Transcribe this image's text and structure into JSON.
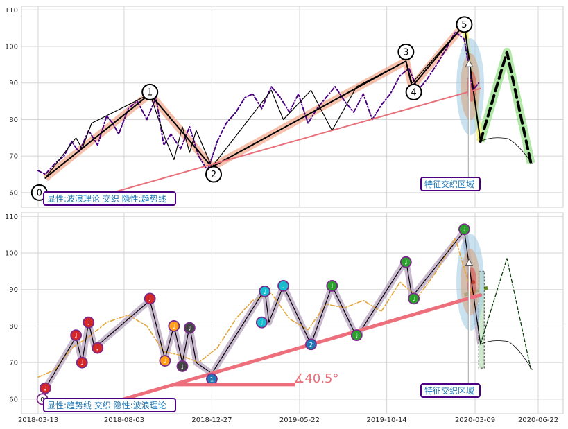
{
  "chart_data": [
    {
      "type": "line",
      "panel": "top",
      "ylim": [
        56,
        111
      ],
      "yticks": [
        60,
        70,
        80,
        90,
        100,
        110
      ],
      "grid": true,
      "annotation_box": "显性:波浪理论 交织 隐性:趋势线",
      "region_label": "特征交织区域",
      "series": [
        {
          "style": "dash-dot-purple",
          "x": [
            "2018-03-13",
            "2018-03-25",
            "2018-04-10",
            "2018-04-25",
            "2018-05-08",
            "2018-05-20",
            "2018-06-05",
            "2018-06-20",
            "2018-07-05",
            "2018-07-15",
            "2018-07-25",
            "2018-08-10",
            "2018-08-25",
            "2018-09-10",
            "2018-09-25",
            "2018-10-08",
            "2018-10-20",
            "2018-11-05",
            "2018-11-20",
            "2018-12-05",
            "2018-12-20",
            "2019-01-05",
            "2019-01-20",
            "2019-02-05",
            "2019-02-20",
            "2019-03-05",
            "2019-03-20",
            "2019-04-05",
            "2019-04-20",
            "2019-05-05",
            "2019-05-20",
            "2019-06-05",
            "2019-06-20",
            "2019-07-05",
            "2019-07-20",
            "2019-08-05",
            "2019-08-20",
            "2019-09-05",
            "2019-09-20",
            "2019-10-05",
            "2019-10-20",
            "2019-11-05",
            "2019-11-20",
            "2019-12-05",
            "2019-12-20",
            "2020-01-05",
            "2020-01-20",
            "2020-02-05",
            "2020-02-20",
            "2020-03-05",
            "2020-03-15"
          ],
          "y": [
            66,
            65,
            68,
            70,
            74,
            71,
            77,
            73,
            81,
            79,
            76,
            83,
            85,
            80,
            86,
            73,
            76,
            72,
            78,
            70,
            66,
            74,
            79,
            82,
            86,
            87,
            83,
            89,
            86,
            82,
            87,
            79,
            83,
            86,
            89,
            85,
            82,
            87,
            80,
            84,
            87,
            92,
            94,
            88,
            91,
            95,
            99,
            104,
            102,
            88,
            90
          ]
        },
        {
          "style": "wave-thin",
          "x": [
            "2018-03-25",
            "2018-05-15",
            "2018-05-25",
            "2018-06-10",
            "2018-09-15",
            "2018-10-10",
            "2018-10-25",
            "2018-11-08",
            "2018-11-20",
            "2018-12-01",
            "2018-12-27",
            "2019-04-05",
            "2019-04-25",
            "2019-06-10",
            "2019-07-15",
            "2019-08-25",
            "2019-11-15",
            "2019-11-25",
            "2020-02-20",
            "2020-03-18"
          ],
          "y": [
            64,
            75,
            72,
            79,
            87,
            75,
            69,
            78,
            71,
            77,
            67,
            88,
            80,
            88,
            77,
            89,
            96,
            90,
            106,
            74
          ]
        },
        {
          "style": "wave-main",
          "x": [
            "2018-03-25",
            "2018-09-15",
            "2018-12-27",
            "2019-11-15",
            "2019-11-25",
            "2020-02-20",
            "2020-03-18"
          ],
          "y": [
            64,
            87,
            67,
            96,
            89,
            106,
            74
          ]
        },
        {
          "style": "trend-red",
          "x": [
            "2018-06-01",
            "2020-03-18"
          ],
          "y": [
            58,
            88.5
          ]
        },
        {
          "style": "forecast-dashed",
          "x": [
            "2020-03-18",
            "2020-05-01",
            "2020-06-10"
          ],
          "y": [
            74,
            98.5,
            68
          ]
        }
      ],
      "wave_points": [
        {
          "label": "0",
          "x": "2018-03-15",
          "y": 60
        },
        {
          "label": "1",
          "x": "2018-09-15",
          "y": 87.5
        },
        {
          "label": "2",
          "x": "2018-12-30",
          "y": 65
        },
        {
          "label": "3",
          "x": "2019-11-15",
          "y": 98.5
        },
        {
          "label": "4",
          "x": "2019-11-28",
          "y": 87.5
        },
        {
          "label": "5",
          "x": "2020-02-20",
          "y": 106
        }
      ]
    },
    {
      "type": "line",
      "panel": "bottom",
      "ylim": [
        56,
        111
      ],
      "yticks": [
        60,
        70,
        80,
        90,
        100,
        110
      ],
      "xticks": [
        "2018-03-13",
        "2018-08-03",
        "2018-12-27",
        "2019-05-22",
        "2019-10-14",
        "2020-03-09",
        "2020-06-22"
      ],
      "grid": true,
      "annotation_box": "显性:趋势线 交织 隐性:波浪理论",
      "region_label": "特征交织区域",
      "angle_label": "∡40.5°",
      "series": [
        {
          "style": "dash-dot-orange",
          "x": [
            "2018-03-13",
            "2018-04-10",
            "2018-05-08",
            "2018-06-05",
            "2018-07-05",
            "2018-08-10",
            "2018-09-10",
            "2018-10-08",
            "2018-11-05",
            "2018-12-05",
            "2019-01-05",
            "2019-02-05",
            "2019-03-05",
            "2019-04-05",
            "2019-05-05",
            "2019-06-05",
            "2019-07-05",
            "2019-08-05",
            "2019-09-05",
            "2019-10-05",
            "2019-11-05",
            "2019-12-05",
            "2020-01-05",
            "2020-02-05",
            "2020-03-05"
          ],
          "y": [
            66,
            68,
            74,
            77,
            81,
            83,
            80,
            73,
            72,
            70,
            74,
            82,
            87,
            89,
            82,
            79,
            86,
            85,
            87,
            84,
            92,
            88,
            95,
            104,
            88
          ]
        },
        {
          "style": "wave-thin",
          "x": [
            "2018-03-25",
            "2018-05-15",
            "2018-05-25",
            "2018-06-05",
            "2018-06-15",
            "2018-09-15",
            "2018-10-10",
            "2018-10-25",
            "2018-11-08",
            "2018-11-20",
            "2018-12-01",
            "2018-12-27",
            "2019-03-25",
            "2019-04-01",
            "2019-04-25",
            "2019-06-10",
            "2019-07-15",
            "2019-08-25",
            "2019-11-15",
            "2019-11-25",
            "2020-02-20",
            "2020-03-18"
          ],
          "y": [
            63,
            77,
            70,
            81,
            74,
            87,
            71,
            80,
            70,
            80,
            70,
            67,
            90,
            81,
            91,
            75,
            91,
            77,
            98,
            88,
            106,
            75
          ]
        },
        {
          "style": "trend-red-thick",
          "x": [
            "2018-06-01",
            "2020-03-18"
          ],
          "y": [
            57,
            88.5
          ]
        },
        {
          "style": "forecast-dashed-thin",
          "x": [
            "2020-03-18",
            "2020-05-01",
            "2020-06-10"
          ],
          "y": [
            75,
            98.5,
            68
          ]
        }
      ],
      "markers": [
        {
          "label": "0",
          "x": "2018-03-20",
          "y": 60,
          "color": "#ffffff"
        },
        {
          "label": "♩",
          "x": "2018-03-25",
          "y": 63,
          "color": "#d62728"
        },
        {
          "label": "♩",
          "x": "2018-05-15",
          "y": 77.5,
          "color": "#d62728"
        },
        {
          "label": "♩",
          "x": "2018-05-25",
          "y": 70,
          "color": "#d62728"
        },
        {
          "label": "♩",
          "x": "2018-06-05",
          "y": 81,
          "color": "#d62728"
        },
        {
          "label": "♩",
          "x": "2018-06-20",
          "y": 74,
          "color": "#d62728"
        },
        {
          "label": "♩",
          "x": "2018-09-15",
          "y": 87.5,
          "color": "#d62728"
        },
        {
          "label": "♩",
          "x": "2018-10-10",
          "y": 70.5,
          "color": "#ff9f1c"
        },
        {
          "label": "♩",
          "x": "2018-10-25",
          "y": 80,
          "color": "#ff9f1c"
        },
        {
          "label": "♩",
          "x": "2018-11-08",
          "y": 69,
          "color": "#444444"
        },
        {
          "label": "♩",
          "x": "2018-11-20",
          "y": 79.5,
          "color": "#444444"
        },
        {
          "label": "1",
          "x": "2018-12-27",
          "y": 65.5,
          "color": "#1f77b4"
        },
        {
          "label": "♩",
          "x": "2019-03-25",
          "y": 89.5,
          "color": "#17becf"
        },
        {
          "label": "♩",
          "x": "2019-03-20",
          "y": 81,
          "color": "#17becf"
        },
        {
          "label": "♩",
          "x": "2019-04-25",
          "y": 91,
          "color": "#17becf"
        },
        {
          "label": "2",
          "x": "2019-06-10",
          "y": 75,
          "color": "#1f77b4"
        },
        {
          "label": "♩",
          "x": "2019-07-15",
          "y": 91,
          "color": "#2ca02c"
        },
        {
          "label": "♩",
          "x": "2019-08-25",
          "y": 77.5,
          "color": "#2ca02c"
        },
        {
          "label": "♩",
          "x": "2019-11-15",
          "y": 97.5,
          "color": "#2ca02c"
        },
        {
          "label": "♩",
          "x": "2019-11-28",
          "y": 87.5,
          "color": "#2ca02c"
        },
        {
          "label": "♩",
          "x": "2020-02-20",
          "y": 106.5,
          "color": "#2ca02c"
        }
      ]
    }
  ]
}
